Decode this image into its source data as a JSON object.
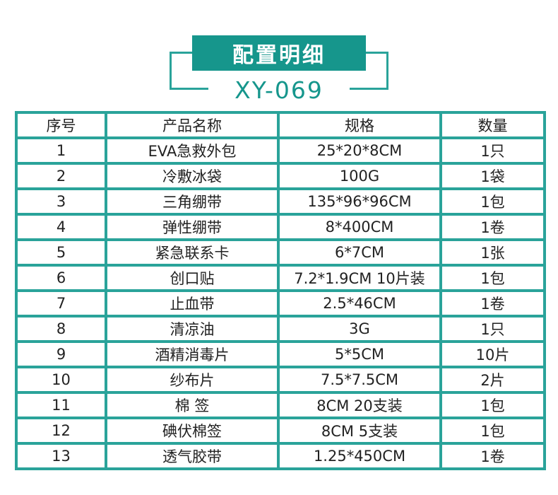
{
  "header": {
    "title": "配置明细",
    "model": "XY-069",
    "accent_color": "#16968c"
  },
  "table": {
    "columns": [
      "序号",
      "产品名称",
      "规格",
      "数量"
    ],
    "rows": [
      [
        "1",
        "EVA急救外包",
        "25*20*8CM",
        "1只"
      ],
      [
        "2",
        "冷敷冰袋",
        "100G",
        "1袋"
      ],
      [
        "3",
        "三角绷带",
        "135*96*96CM",
        "1包"
      ],
      [
        "4",
        "弹性绷带",
        "8*400CM",
        "1卷"
      ],
      [
        "5",
        "紧急联系卡",
        "6*7CM",
        "1张"
      ],
      [
        "6",
        "创口贴",
        "7.2*1.9CM 10片装",
        "1包"
      ],
      [
        "7",
        "止血带",
        "2.5*46CM",
        "1卷"
      ],
      [
        "8",
        "清凉油",
        "3G",
        "1只"
      ],
      [
        "9",
        "酒精消毒片",
        "5*5CM",
        "10片"
      ],
      [
        "10",
        "纱布片",
        "7.5*7.5CM",
        "2片"
      ],
      [
        "11",
        "棉 签",
        "8CM 20支装",
        "1包"
      ],
      [
        "12",
        "碘伏棉签",
        "8CM 5支装",
        "1包"
      ],
      [
        "13",
        "透气胶带",
        "1.25*450CM",
        "1卷"
      ]
    ]
  }
}
